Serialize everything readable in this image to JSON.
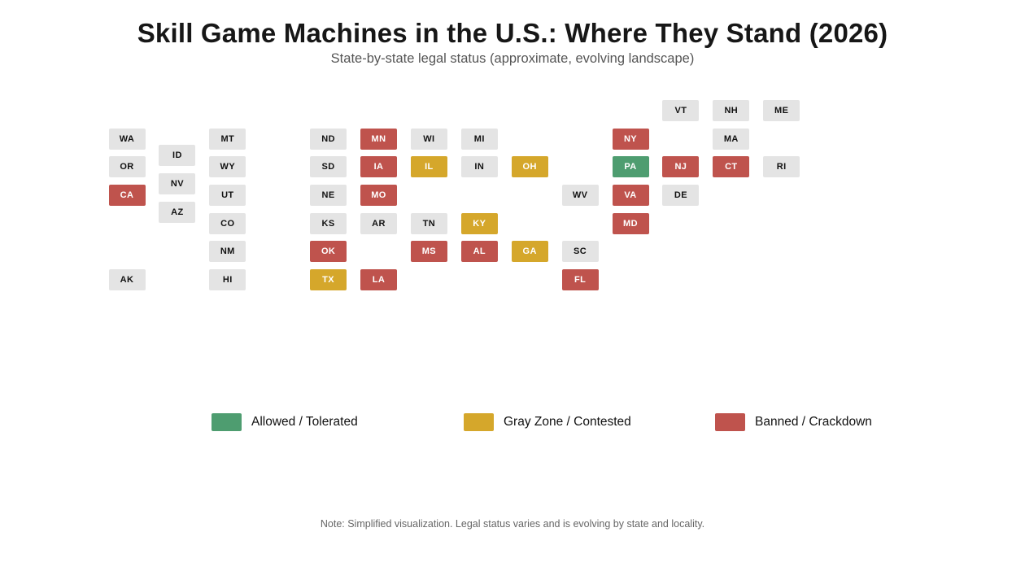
{
  "title": "Skill Game Machines in the U.S.: Where They Stand (2026)",
  "subtitle": "State-by-state legal status (approximate, evolving landscape)",
  "note": "Note: Simplified visualization. Legal status varies and is evolving by state and locality.",
  "colors": {
    "allowed": "#4e9d70",
    "gray_zone": "#d5a72b",
    "banned": "#bf534d",
    "neutral": "#e4e4e4",
    "tile_text_on_color": "#ffffff",
    "tile_text_on_neutral": "#111111"
  },
  "legend": [
    {
      "status": "allowed",
      "label": "Allowed / Tolerated"
    },
    {
      "status": "gray_zone",
      "label": "Gray Zone / Contested"
    },
    {
      "status": "banned",
      "label": "Banned / Crackdown"
    }
  ],
  "chart_data": {
    "type": "tile-grid-map",
    "title": "Skill Game Machines in the U.S.: Where They Stand (2026)",
    "subtitle": "State-by-state legal status (approximate, evolving landscape)",
    "legend_position": "bottom",
    "categories": [
      "allowed",
      "gray_zone",
      "banned",
      "neutral"
    ],
    "states": [
      {
        "abbr": "WA",
        "col": 0,
        "row": 1,
        "status": "neutral"
      },
      {
        "abbr": "OR",
        "col": 0,
        "row": 2,
        "status": "neutral"
      },
      {
        "abbr": "CA",
        "col": 0,
        "row": 3,
        "status": "banned"
      },
      {
        "abbr": "AK",
        "col": 0,
        "row": 6,
        "status": "neutral"
      },
      {
        "abbr": "ID",
        "col": 1,
        "row": 1.6,
        "status": "neutral"
      },
      {
        "abbr": "NV",
        "col": 1,
        "row": 2.6,
        "status": "neutral"
      },
      {
        "abbr": "AZ",
        "col": 1,
        "row": 3.6,
        "status": "neutral"
      },
      {
        "abbr": "MT",
        "col": 2,
        "row": 1,
        "status": "neutral"
      },
      {
        "abbr": "WY",
        "col": 2,
        "row": 2,
        "status": "neutral"
      },
      {
        "abbr": "UT",
        "col": 2,
        "row": 3,
        "status": "neutral"
      },
      {
        "abbr": "CO",
        "col": 2,
        "row": 4,
        "status": "neutral"
      },
      {
        "abbr": "NM",
        "col": 2,
        "row": 5,
        "status": "neutral"
      },
      {
        "abbr": "HI",
        "col": 2,
        "row": 6,
        "status": "neutral"
      },
      {
        "abbr": "ND",
        "col": 4,
        "row": 1,
        "status": "neutral"
      },
      {
        "abbr": "SD",
        "col": 4,
        "row": 2,
        "status": "neutral"
      },
      {
        "abbr": "NE",
        "col": 4,
        "row": 3,
        "status": "neutral"
      },
      {
        "abbr": "KS",
        "col": 4,
        "row": 4,
        "status": "neutral"
      },
      {
        "abbr": "OK",
        "col": 4,
        "row": 5,
        "status": "banned"
      },
      {
        "abbr": "TX",
        "col": 4,
        "row": 6,
        "status": "gray_zone"
      },
      {
        "abbr": "MN",
        "col": 5,
        "row": 1,
        "status": "banned"
      },
      {
        "abbr": "IA",
        "col": 5,
        "row": 2,
        "status": "banned"
      },
      {
        "abbr": "MO",
        "col": 5,
        "row": 3,
        "status": "banned"
      },
      {
        "abbr": "AR",
        "col": 5,
        "row": 4,
        "status": "neutral"
      },
      {
        "abbr": "LA",
        "col": 5,
        "row": 6,
        "status": "banned"
      },
      {
        "abbr": "WI",
        "col": 6,
        "row": 1,
        "status": "neutral"
      },
      {
        "abbr": "IL",
        "col": 6,
        "row": 2,
        "status": "gray_zone"
      },
      {
        "abbr": "TN",
        "col": 6,
        "row": 4,
        "status": "neutral"
      },
      {
        "abbr": "MS",
        "col": 6,
        "row": 5,
        "status": "banned"
      },
      {
        "abbr": "MI",
        "col": 7,
        "row": 1,
        "status": "neutral"
      },
      {
        "abbr": "IN",
        "col": 7,
        "row": 2,
        "status": "neutral"
      },
      {
        "abbr": "KY",
        "col": 7,
        "row": 4,
        "status": "gray_zone"
      },
      {
        "abbr": "AL",
        "col": 7,
        "row": 5,
        "status": "banned"
      },
      {
        "abbr": "OH",
        "col": 8,
        "row": 2,
        "status": "gray_zone"
      },
      {
        "abbr": "GA",
        "col": 8,
        "row": 5,
        "status": "gray_zone"
      },
      {
        "abbr": "WV",
        "col": 9,
        "row": 3,
        "status": "neutral"
      },
      {
        "abbr": "SC",
        "col": 9,
        "row": 5,
        "status": "neutral"
      },
      {
        "abbr": "FL",
        "col": 9,
        "row": 6,
        "status": "banned"
      },
      {
        "abbr": "NY",
        "col": 10,
        "row": 1,
        "status": "banned"
      },
      {
        "abbr": "PA",
        "col": 10,
        "row": 2,
        "status": "allowed"
      },
      {
        "abbr": "VA",
        "col": 10,
        "row": 3,
        "status": "banned"
      },
      {
        "abbr": "MD",
        "col": 10,
        "row": 4,
        "status": "banned"
      },
      {
        "abbr": "VT",
        "col": 11,
        "row": 0,
        "status": "neutral"
      },
      {
        "abbr": "NJ",
        "col": 11,
        "row": 2,
        "status": "banned"
      },
      {
        "abbr": "DE",
        "col": 11,
        "row": 3,
        "status": "neutral"
      },
      {
        "abbr": "NH",
        "col": 12,
        "row": 0,
        "status": "neutral"
      },
      {
        "abbr": "MA",
        "col": 12,
        "row": 1,
        "status": "neutral"
      },
      {
        "abbr": "CT",
        "col": 12,
        "row": 2,
        "status": "banned"
      },
      {
        "abbr": "ME",
        "col": 13,
        "row": 0,
        "status": "neutral"
      },
      {
        "abbr": "RI",
        "col": 13,
        "row": 2,
        "status": "neutral"
      }
    ]
  }
}
